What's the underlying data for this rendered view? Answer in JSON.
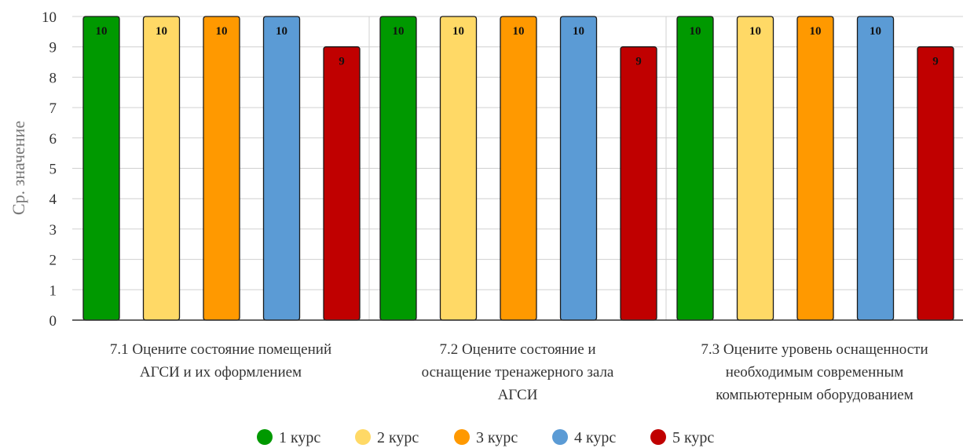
{
  "chart_data": {
    "type": "bar",
    "ylabel": "Ср. значение",
    "ylim": [
      0,
      10
    ],
    "yticks": [
      0,
      1,
      2,
      3,
      4,
      5,
      6,
      7,
      8,
      9,
      10
    ],
    "grid": true,
    "legend_position": "bottom",
    "categories": [
      [
        "7.1 Оцените состояние помещений",
        "АГСИ и их оформлением"
      ],
      [
        "7.2 Оцените состояние и",
        "оснащение тренажерного зала",
        "АГСИ"
      ],
      [
        "7.3 Оцените уровень оснащенности",
        "необходимым современным",
        "компьютерным оборудованием"
      ]
    ],
    "series": [
      {
        "name": "1 курс",
        "color": "#009900",
        "values": [
          10,
          10,
          10
        ]
      },
      {
        "name": "2 курс",
        "color": "#ffd966",
        "values": [
          10,
          10,
          10
        ]
      },
      {
        "name": "3 курс",
        "color": "#ff9900",
        "values": [
          10,
          10,
          10
        ]
      },
      {
        "name": "4 курс",
        "color": "#5b9bd5",
        "values": [
          10,
          10,
          10
        ]
      },
      {
        "name": "5 курс",
        "color": "#c00000",
        "values": [
          9,
          9,
          9
        ]
      }
    ]
  }
}
